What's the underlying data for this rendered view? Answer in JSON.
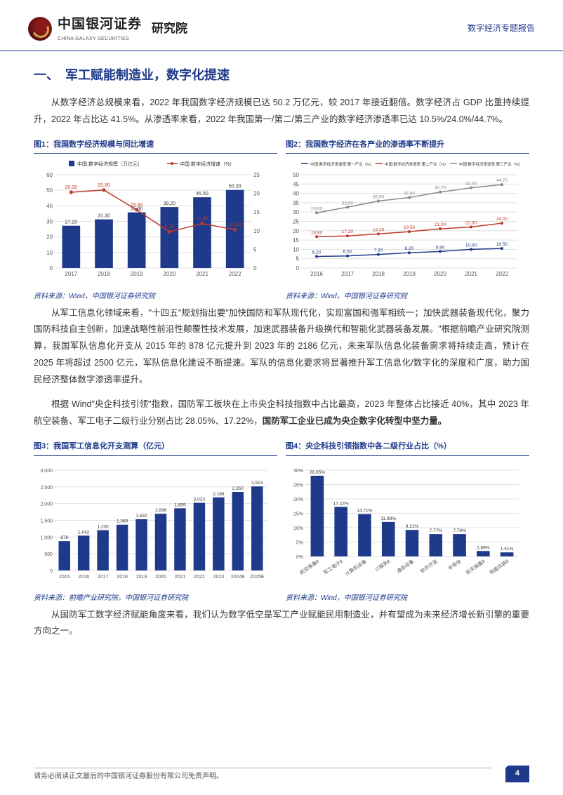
{
  "header": {
    "company_cn": "中国银河证券",
    "company_en": "CHINA GALAXY SECURITIES",
    "division": "研究院",
    "right_text": "数字经济专题报告"
  },
  "section_title": "一、　军工赋能制造业，数字化提速",
  "para1": "从数字经济总规模来看，2022 年我国数字经济规模已达 50.2 万亿元，较 2017 年接近翻倍。数字经济占 GDP 比重持续提升，2022 年占比达 41.5%。从渗透率来看，2022 年我国第一/第二/第三产业的数字经济渗透率已达 10.5%/24.0%/44.7%。",
  "chart1": {
    "title": "图1：我国数字经济规模与同比增速",
    "source": "资料来源：Wind，中国银河证券研究院",
    "type": "bar+line",
    "legend_bar": "中国:数字经济规模（万亿元）",
    "legend_line": "中国:数字经济增速（%）",
    "years": [
      "2017",
      "2018",
      "2019",
      "2020",
      "2021",
      "2022"
    ],
    "bar_values": [
      27.2,
      31.3,
      35.8,
      39.2,
      45.5,
      50.2
    ],
    "line_values": [
      20.3,
      20.9,
      15.6,
      9.7,
      11.9,
      10.3
    ],
    "bar_color": "#1f3a8a",
    "line_color": "#c0392b",
    "y1_max": 60,
    "y1_step": 10,
    "y2_max": 25,
    "y2_step": 5,
    "grid_color": "#e0e0e0",
    "font_size": 8
  },
  "chart2": {
    "title": "图2：我国数字经济在各产业的渗透率不断提升",
    "source": "资料来源：Wind，中国银河证券研究院",
    "type": "line",
    "legend": [
      "中国:数字经济渗透率:第一产业（%）",
      "中国:数字经济渗透率:第二产业（%）",
      "中国:数字经济渗透率:第三产业（%）"
    ],
    "years": [
      "2016",
      "2017",
      "2018",
      "2019",
      "2020",
      "2021",
      "2022"
    ],
    "series1": [
      6.2,
      6.5,
      7.3,
      8.2,
      8.9,
      10.0,
      10.5
    ],
    "series2": [
      16.8,
      17.2,
      18.3,
      19.5,
      21.0,
      22.0,
      24.0
    ],
    "series3": [
      29.6,
      32.6,
      35.9,
      37.8,
      40.7,
      43.0,
      44.7
    ],
    "colors": [
      "#1f3a8a",
      "#c0392b",
      "#888888"
    ],
    "y_max": 50,
    "y_step": 5,
    "grid_color": "#e0e0e0",
    "font_size": 8
  },
  "para2": "从军工信息化领域来看，\"十四五\"规划指出要\"加快国防和军队现代化，实现富国和强军相统一；加快武器装备现代化，聚力国防科技自主创新，加速战略性前沿性颠覆性技术发展，加速武器装备升级换代和智能化武器装备发展。\"根据前瞻产业研究院测算，我国军队信息化开支从 2015 年的 878 亿元提升到 2023 年的 2186 亿元，未来军队信息化装备需求将持续走高，预计在 2025 年将超过 2500 亿元，军队信息化建设不断提速。军队的信息化要求将显著推升军工信息化/数字化的深度和广度，助力国民经济整体数字渗透率提升。",
  "para3_a": "根据 Wind\"央企科技引领\"指数，国防军工板块在上市央企科技指数中占比最高，2023 年整体占比接近 40%，其中 2023 年航空装备、军工电子二级行业分别占比 28.05%、17.22%，",
  "para3_b": "国防军工企业已成为央企数字化转型中坚力量。",
  "chart3": {
    "title": "图3：我国军工信息化开支测算（亿元）",
    "source": "资料来源：前瞻产业研究院，中国银河证券研究院",
    "type": "bar",
    "years": [
      "2015",
      "2016",
      "2017",
      "2018",
      "2019",
      "2020",
      "2021",
      "2022",
      "2023",
      "2024E",
      "2025E"
    ],
    "values": [
      878,
      1042,
      1205,
      1369,
      1532,
      1696,
      1859,
      2023,
      2186,
      2350,
      2513
    ],
    "bar_color": "#1f3a8a",
    "y_max": 3000,
    "y_step": 500,
    "grid_color": "#e0e0e0",
    "font_size": 7
  },
  "chart4": {
    "title": "图4：央企科技引领指数中各二级行业占比（%）",
    "source": "资料来源：Wind，中国银河证券研究院",
    "type": "bar",
    "categories": [
      "航空装备Ⅱ",
      "军工电子Ⅱ",
      "计算机设备",
      "IT服务Ⅱ",
      "通信设备",
      "软件开发",
      "半导体",
      "航天装备Ⅱ",
      "地面兵装Ⅱ"
    ],
    "values": [
      28.05,
      17.22,
      14.71,
      11.98,
      9.21,
      7.77,
      7.78,
      1.89,
      1.41
    ],
    "bar_color": "#1f3a8a",
    "y_max": 30,
    "y_step": 5,
    "grid_color": "#e0e0e0",
    "font_size": 7
  },
  "para4": "从国防军工数字经济赋能角度来看，我们认为数字低空是军工产业赋能民用制造业，并有望成为未来经济增长新引擎的重要方向之一。",
  "footer": {
    "disclaimer": "请务必阅读正文最后的中国银河证券股份有限公司免责声明。",
    "page": "4"
  }
}
